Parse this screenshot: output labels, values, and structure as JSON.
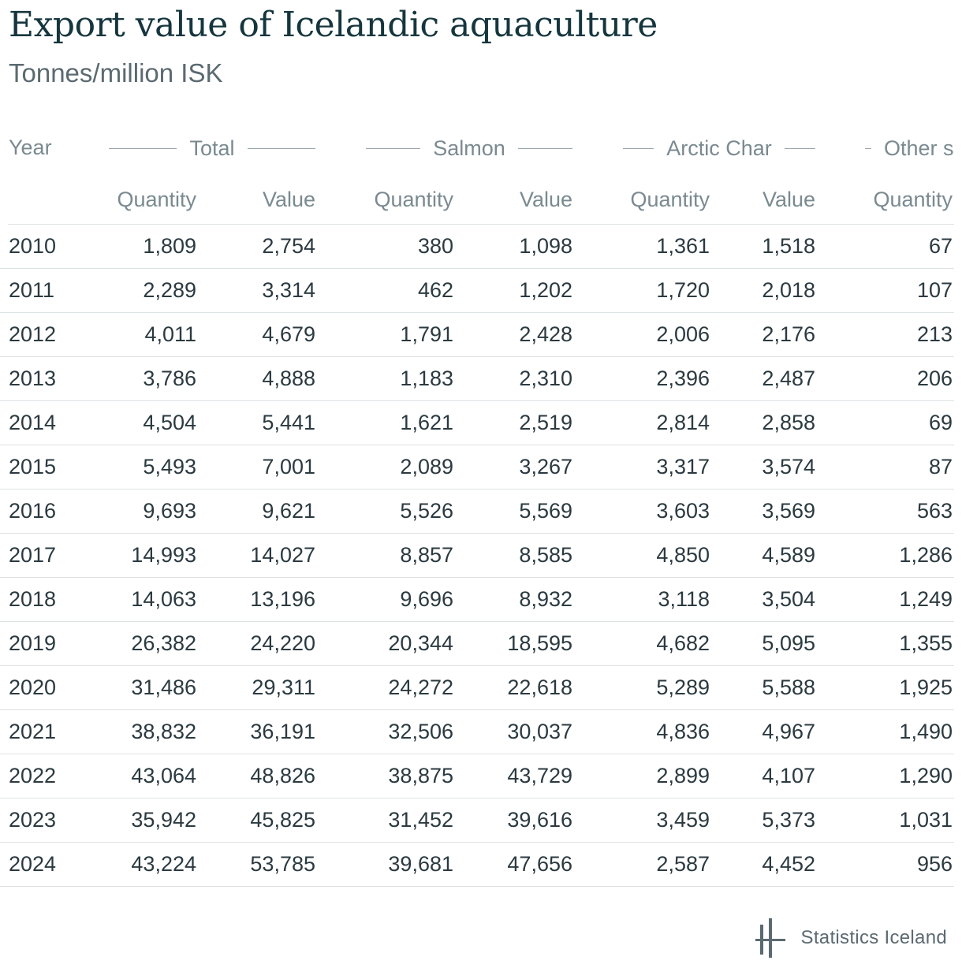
{
  "title": "Export value of Icelandic aquaculture",
  "subtitle": "Tonnes/million ISK",
  "chart_data": {
    "type": "table",
    "title": "Export value of Icelandic aquaculture",
    "subtitle": "Tonnes/million ISK",
    "year_header": "Year",
    "groups": [
      "Total",
      "Salmon",
      "Arctic Char",
      "Other s"
    ],
    "subheaders": [
      "Quantity",
      "Value",
      "Quantity",
      "Value",
      "Quantity",
      "Value",
      "Quantity"
    ],
    "rows": [
      {
        "year": "2010",
        "cells": [
          "1,809",
          "2,754",
          "380",
          "1,098",
          "1,361",
          "1,518",
          "67"
        ]
      },
      {
        "year": "2011",
        "cells": [
          "2,289",
          "3,314",
          "462",
          "1,202",
          "1,720",
          "2,018",
          "107"
        ]
      },
      {
        "year": "2012",
        "cells": [
          "4,011",
          "4,679",
          "1,791",
          "2,428",
          "2,006",
          "2,176",
          "213"
        ]
      },
      {
        "year": "2013",
        "cells": [
          "3,786",
          "4,888",
          "1,183",
          "2,310",
          "2,396",
          "2,487",
          "206"
        ]
      },
      {
        "year": "2014",
        "cells": [
          "4,504",
          "5,441",
          "1,621",
          "2,519",
          "2,814",
          "2,858",
          "69"
        ]
      },
      {
        "year": "2015",
        "cells": [
          "5,493",
          "7,001",
          "2,089",
          "3,267",
          "3,317",
          "3,574",
          "87"
        ]
      },
      {
        "year": "2016",
        "cells": [
          "9,693",
          "9,621",
          "5,526",
          "5,569",
          "3,603",
          "3,569",
          "563"
        ]
      },
      {
        "year": "2017",
        "cells": [
          "14,993",
          "14,027",
          "8,857",
          "8,585",
          "4,850",
          "4,589",
          "1,286"
        ]
      },
      {
        "year": "2018",
        "cells": [
          "14,063",
          "13,196",
          "9,696",
          "8,932",
          "3,118",
          "3,504",
          "1,249"
        ]
      },
      {
        "year": "2019",
        "cells": [
          "26,382",
          "24,220",
          "20,344",
          "18,595",
          "4,682",
          "5,095",
          "1,355"
        ]
      },
      {
        "year": "2020",
        "cells": [
          "31,486",
          "29,311",
          "24,272",
          "22,618",
          "5,289",
          "5,588",
          "1,925"
        ]
      },
      {
        "year": "2021",
        "cells": [
          "38,832",
          "36,191",
          "32,506",
          "30,037",
          "4,836",
          "4,967",
          "1,490"
        ]
      },
      {
        "year": "2022",
        "cells": [
          "43,064",
          "48,826",
          "38,875",
          "43,729",
          "2,899",
          "4,107",
          "1,290"
        ]
      },
      {
        "year": "2023",
        "cells": [
          "35,942",
          "45,825",
          "31,452",
          "39,616",
          "3,459",
          "5,373",
          "1,031"
        ]
      },
      {
        "year": "2024",
        "cells": [
          "43,224",
          "53,785",
          "39,681",
          "47,656",
          "2,587",
          "4,452",
          "956"
        ]
      }
    ]
  },
  "footer": {
    "brand": "Statistics Iceland",
    "logo_icon": "statistics-iceland-logo-icon",
    "logo_color": "#5b6a70"
  }
}
